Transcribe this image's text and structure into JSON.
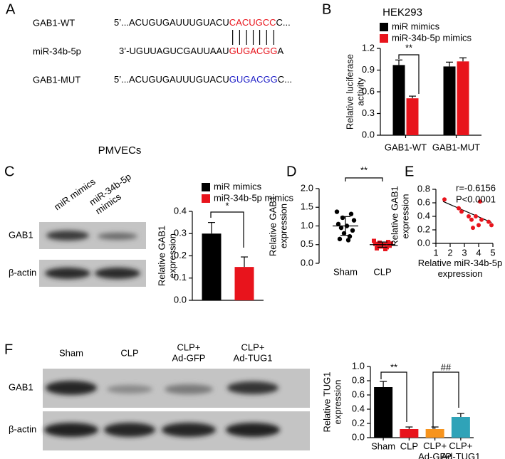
{
  "panel_labels": [
    "A",
    "B",
    "C",
    "D",
    "E",
    "F"
  ],
  "sequences": [
    {
      "label": "GAB1-WT",
      "parts": [
        {
          "text": "5’...ACUGUGAUUUGUACU",
          "color": "#000000"
        },
        {
          "text": "CACUGCC",
          "color": "#e8141c"
        },
        {
          "text": "C...",
          "color": "#000000"
        }
      ]
    },
    {
      "label": "miR-34b-5p",
      "parts": [
        {
          "text": "3’-UGUUAGUCGAUUAAU",
          "color": "#000000"
        },
        {
          "text": "GUGACGG",
          "color": "#e8141c"
        },
        {
          "text": "A",
          "color": "#000000"
        }
      ]
    },
    {
      "label": "GAB1-MUT",
      "parts": [
        {
          "text": "5’...ACUGUGAUUUGUACU",
          "color": "#000000"
        },
        {
          "text": "GUGACGG",
          "color": "#2323c8"
        },
        {
          "text": "C...",
          "color": "#000000"
        }
      ]
    }
  ],
  "blots": [
    {
      "title": "PMVECs",
      "lanes": [
        "miR mimics",
        "miR-34b-5p\nmimics"
      ],
      "rows": [
        "GAB1",
        "β-actin"
      ]
    },
    {
      "lanes": [
        "Sham",
        "CLP",
        "CLP+\nAd-GFP",
        "CLP+\nAd-TUG1"
      ],
      "rows": [
        "GAB1",
        "β-actin"
      ]
    }
  ],
  "chart_data": [
    {
      "type": "bar",
      "title": "HEK293",
      "ylabel": "Relative luciferase\nactivity",
      "categories": [
        "GAB1-WT",
        "GAB1-MUT"
      ],
      "series": [
        {
          "name": "miR mimics",
          "color": "#000000",
          "values": [
            0.97,
            0.95
          ],
          "errors": [
            0.07,
            0.06
          ]
        },
        {
          "name": "miR-34b-5p mimics",
          "color": "#e8141c",
          "values": [
            0.51,
            1.02
          ],
          "errors": [
            0.03,
            0.05
          ]
        }
      ],
      "ylim": [
        0,
        1.2
      ],
      "yticks": [
        {
          "value": 0,
          "label": "0.0"
        },
        0.3,
        0.6,
        0.9,
        1.2
      ],
      "annotations": [
        "**"
      ]
    },
    {
      "type": "bar",
      "ylabel": "Relative GAB1\nexpression",
      "categories": [
        null
      ],
      "series": [
        {
          "name": "miR mimics",
          "color": "#000000",
          "values": [
            0.3
          ],
          "errors": [
            0.05
          ]
        },
        {
          "name": "miR-34b-5p mimics",
          "color": "#e8141c",
          "values": [
            0.15
          ],
          "errors": [
            0.045
          ]
        }
      ],
      "ylim": [
        0,
        0.4
      ],
      "yticks": [
        {
          "value": 0,
          "label": "0.0"
        },
        0.1,
        0.2,
        0.3,
        0.4
      ],
      "annotations": [
        "*"
      ]
    },
    {
      "type": "strip",
      "ylabel": "Relative GAB1\nexpression",
      "categories": [
        "Sham",
        "CLP"
      ],
      "values": [
        [
          1.38,
          1.32,
          1.22,
          1.15,
          1.05,
          1.0,
          0.95,
          0.88,
          0.8,
          0.72,
          0.65,
          0.62
        ],
        [
          0.6,
          0.57,
          0.55,
          0.53,
          0.52,
          0.5,
          0.48,
          0.47,
          0.45,
          0.43,
          0.4,
          0.38
        ]
      ],
      "means": [
        1.0,
        0.5
      ],
      "errors": [
        0.25,
        0.07
      ],
      "color": "#000000",
      "ylim": [
        0,
        2.0
      ],
      "yticks": [
        {
          "value": 0,
          "label": "0.0"
        },
        0.5,
        {
          "value": 1,
          "label": "1.0"
        },
        1.5,
        {
          "value": 2,
          "label": "2.0"
        }
      ],
      "annotations": [
        "**"
      ]
    },
    {
      "type": "scatter",
      "ylabel": "Relative GAB1\nexpression",
      "xlabel": "Relative miR-34b-5p\nexpression",
      "color": "#e8141c",
      "x": [
        1.6,
        2.6,
        2.8,
        3.3,
        3.5,
        3.8,
        3.6,
        4.1,
        4.0,
        4.2,
        4.7,
        4.9
      ],
      "values": [
        0.65,
        0.52,
        0.47,
        0.4,
        0.35,
        0.4,
        0.23,
        0.62,
        0.27,
        0.35,
        0.32,
        0.27
      ],
      "trendline": {
        "x": [
          1.5,
          4.9
        ],
        "y": [
          0.62,
          0.31
        ]
      },
      "xlim": [
        1,
        5
      ],
      "xticks": [
        1,
        2,
        3,
        4,
        5
      ],
      "ylim": [
        0,
        0.8
      ],
      "yticks": [
        {
          "value": 0,
          "label": "0.0"
        },
        0.2,
        0.4,
        0.6,
        0.8
      ],
      "annotations": [
        "r=-0.6156",
        "P<0.0001"
      ]
    },
    {
      "type": "bar",
      "ylabel": "Relative TUG1\nexpression",
      "categories": [
        "Sham",
        "CLP",
        "CLP+\nAd-GFP",
        "CLP+\nAd-TUG1"
      ],
      "values": [
        0.71,
        0.12,
        0.12,
        0.29
      ],
      "errors": [
        0.08,
        0.03,
        0.03,
        0.05
      ],
      "colors": [
        "#000000",
        "#e8141c",
        "#f7941d",
        "#2fa3b8"
      ],
      "ylim": [
        0,
        1.0
      ],
      "yticks": [
        {
          "value": 0,
          "label": "0.0"
        },
        0.2,
        0.4,
        0.6,
        0.8,
        {
          "value": 1,
          "label": "1.0"
        }
      ],
      "annotations": [
        "**",
        "##"
      ]
    }
  ]
}
